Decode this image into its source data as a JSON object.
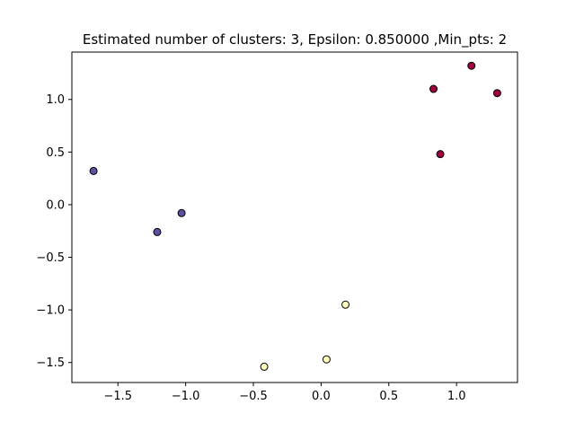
{
  "chart_data": {
    "type": "scatter",
    "title": "Estimated number of clusters: 3, Epsilon: 0.850000 ,Min_pts: 2",
    "xlabel": "",
    "ylabel": "",
    "xlim": [
      -1.84,
      1.45
    ],
    "ylim": [
      -1.69,
      1.45
    ],
    "x_ticks": [
      -1.5,
      -1.0,
      -0.5,
      0.0,
      0.5,
      1.0
    ],
    "x_tick_labels": [
      "−1.5",
      "−1.0",
      "−0.5",
      "0.0",
      "0.5",
      "1.0"
    ],
    "y_ticks": [
      -1.5,
      -1.0,
      -0.5,
      0.0,
      0.5,
      1.0
    ],
    "y_tick_labels": [
      "−1.5",
      "−1.0",
      "−0.5",
      "0.0",
      "0.5",
      "1.0"
    ],
    "grid": false,
    "legend": "none",
    "series": [
      {
        "color": "#5e4fa2",
        "points": [
          [
            -1.68,
            0.32
          ],
          [
            -1.21,
            -0.26
          ],
          [
            -1.03,
            -0.08
          ]
        ]
      },
      {
        "color": "#9e0142",
        "points": [
          [
            0.83,
            1.1
          ],
          [
            1.11,
            1.32
          ],
          [
            1.3,
            1.06
          ],
          [
            0.88,
            0.48
          ]
        ]
      },
      {
        "color": "#ffffbf",
        "points": [
          [
            -0.42,
            -1.54
          ],
          [
            0.04,
            -1.47
          ],
          [
            0.18,
            -0.95
          ]
        ]
      }
    ]
  }
}
